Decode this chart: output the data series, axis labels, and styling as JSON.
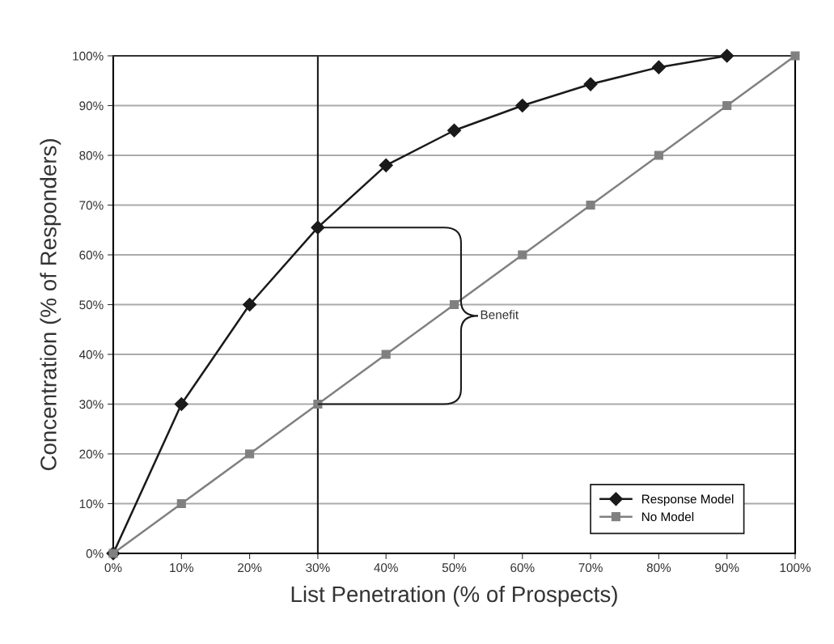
{
  "chart_data": {
    "type": "line",
    "xlabel": "List Penetration (% of Prospects)",
    "ylabel": "Concentration (% of Responders)",
    "x": [
      0,
      10,
      20,
      30,
      40,
      50,
      60,
      70,
      80,
      90,
      100
    ],
    "series": [
      {
        "name": "Response Model",
        "color": "#1a1a1a",
        "marker": "diamond",
        "x": [
          0,
          10,
          20,
          30,
          40,
          50,
          60,
          70,
          80,
          90
        ],
        "values": [
          0,
          30,
          50,
          65.5,
          78,
          85,
          90,
          94.3,
          97.7,
          100
        ]
      },
      {
        "name": "No Model",
        "color": "#808080",
        "marker": "square",
        "values": [
          0,
          10,
          20,
          30,
          40,
          50,
          60,
          70,
          80,
          90,
          100
        ]
      }
    ],
    "xlim": [
      0,
      100
    ],
    "ylim": [
      0,
      100
    ],
    "xticks": [
      {
        "value": 0,
        "label": "0%"
      },
      {
        "value": 10,
        "label": "10%"
      },
      {
        "value": 20,
        "label": "20%"
      },
      {
        "value": 30,
        "label": "30%"
      },
      {
        "value": 40,
        "label": "40%"
      },
      {
        "value": 50,
        "label": "50%"
      },
      {
        "value": 60,
        "label": "60%"
      },
      {
        "value": 70,
        "label": "70%"
      },
      {
        "value": 80,
        "label": "80%"
      },
      {
        "value": 90,
        "label": "90%"
      },
      {
        "value": 100,
        "label": "100%"
      }
    ],
    "yticks": [
      {
        "value": 0,
        "label": "0%"
      },
      {
        "value": 10,
        "label": "10%"
      },
      {
        "value": 20,
        "label": "20%"
      },
      {
        "value": 30,
        "label": "30%"
      },
      {
        "value": 40,
        "label": "40%"
      },
      {
        "value": 50,
        "label": "50%"
      },
      {
        "value": 60,
        "label": "60%"
      },
      {
        "value": 70,
        "label": "70%"
      },
      {
        "value": 80,
        "label": "80%"
      },
      {
        "value": 90,
        "label": "90%"
      },
      {
        "value": 100,
        "label": "100%"
      }
    ],
    "ref_lines": [
      {
        "axis": "x",
        "value": 30,
        "color": "#1a1a1a"
      }
    ],
    "annotations": [
      "Benefit"
    ],
    "grid": "y",
    "legend": "bottom right",
    "line_style": "solid"
  }
}
